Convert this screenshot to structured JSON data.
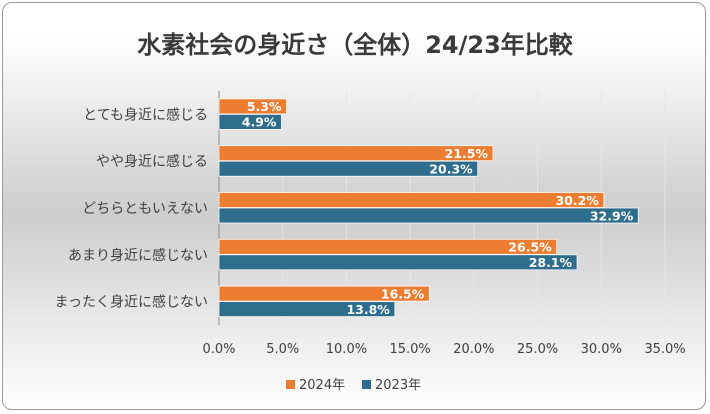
{
  "chart_data": {
    "type": "bar",
    "orientation": "horizontal",
    "title": "水素社会の身近さ（全体）24/23年比較",
    "categories": [
      "とても身近に感じる",
      "やや身近に感じる",
      "どちらともいえない",
      "あまり身近に感じない",
      "まったく身近に感じない"
    ],
    "series": [
      {
        "name": "2024年",
        "color": "#ED7D31",
        "values": [
          5.3,
          21.5,
          30.2,
          26.5,
          16.5
        ]
      },
      {
        "name": "2023年",
        "color": "#2F6D8C",
        "values": [
          4.9,
          20.3,
          32.9,
          28.1,
          13.8
        ]
      }
    ],
    "value_format": "percent_1dp",
    "xlim": [
      0,
      35
    ],
    "xticks": [
      "0.0%",
      "5.0%",
      "10.0%",
      "15.0%",
      "20.0%",
      "25.0%",
      "30.0%",
      "35.0%"
    ],
    "grid": true,
    "legend_position": "bottom"
  }
}
